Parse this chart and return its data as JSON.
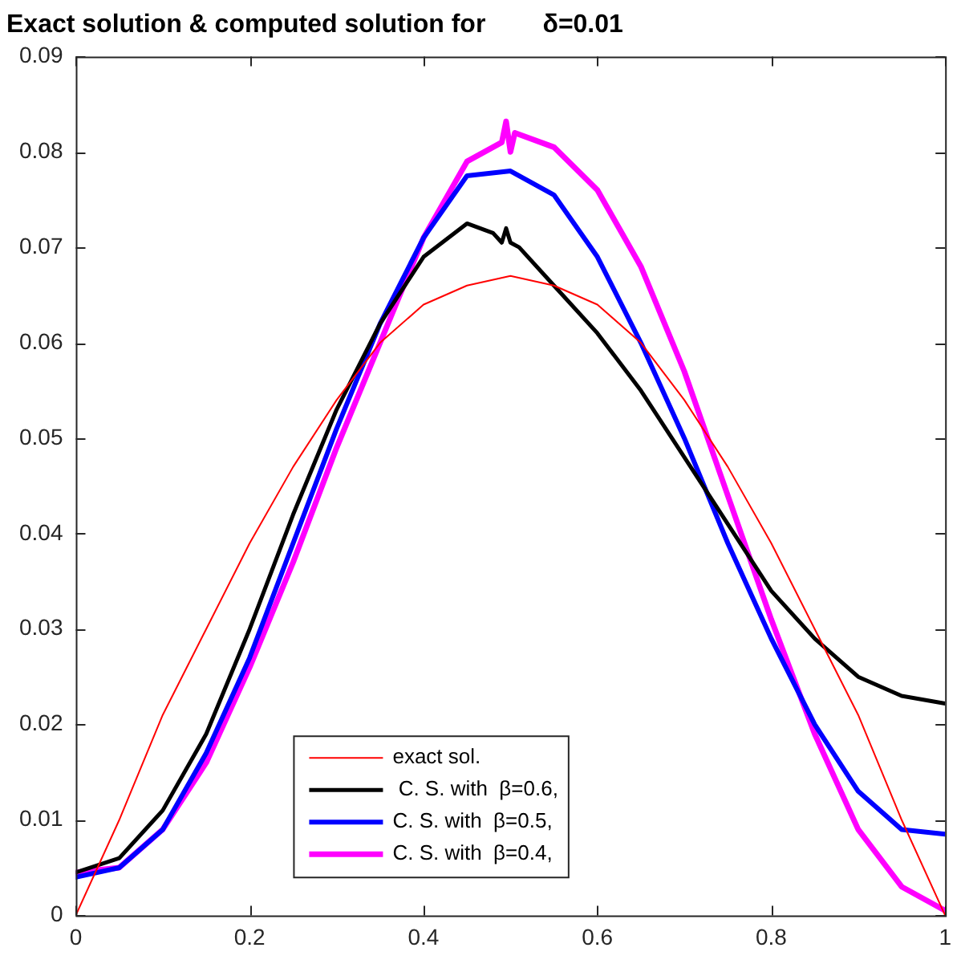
{
  "chart_data": {
    "type": "line",
    "title": "Exact solution & computed solution for        δ=0.01",
    "xlim": [
      0,
      1
    ],
    "ylim": [
      0,
      0.09
    ],
    "xticks": [
      0,
      0.2,
      0.4,
      0.6,
      0.8,
      1
    ],
    "yticks": [
      0,
      0.01,
      0.02,
      0.03,
      0.04,
      0.05,
      0.06,
      0.07,
      0.08,
      0.09
    ],
    "grid": false,
    "legend": "bottom",
    "marker": "none",
    "line_style": "solid",
    "x": [
      0,
      0.05,
      0.1,
      0.15,
      0.2,
      0.25,
      0.3,
      0.35,
      0.4,
      0.45,
      0.5,
      0.55,
      0.6,
      0.65,
      0.7,
      0.75,
      0.8,
      0.85,
      0.9,
      0.95,
      1
    ],
    "series": [
      {
        "name": "exact sol.",
        "color": "#ff0000",
        "values": [
          0,
          0.01,
          0.021,
          0.03,
          0.039,
          0.047,
          0.054,
          0.06,
          0.064,
          0.066,
          0.067,
          0.066,
          0.064,
          0.06,
          0.054,
          0.047,
          0.039,
          0.03,
          0.021,
          0.01,
          0
        ]
      },
      {
        "name": " C. S. with  β=0.6,",
        "color": "#000000",
        "x": [
          0,
          0.05,
          0.1,
          0.15,
          0.2,
          0.25,
          0.3,
          0.35,
          0.4,
          0.45,
          0.48,
          0.49,
          0.495,
          0.5,
          0.51,
          0.55,
          0.6,
          0.65,
          0.7,
          0.75,
          0.8,
          0.85,
          0.9,
          0.95,
          1
        ],
        "values": [
          0.0045,
          0.006,
          0.011,
          0.019,
          0.03,
          0.042,
          0.053,
          0.062,
          0.069,
          0.0725,
          0.0715,
          0.0705,
          0.072,
          0.0705,
          0.07,
          0.066,
          0.061,
          0.055,
          0.048,
          0.041,
          0.034,
          0.029,
          0.025,
          0.023,
          0.0222
        ]
      },
      {
        "name": "C. S. with  β=0.5,",
        "color": "#0000ff",
        "values": [
          0.004,
          0.005,
          0.009,
          0.017,
          0.027,
          0.039,
          0.051,
          0.062,
          0.071,
          0.0775,
          0.078,
          0.0755,
          0.069,
          0.06,
          0.05,
          0.039,
          0.029,
          0.02,
          0.013,
          0.009,
          0.0085
        ]
      },
      {
        "name": "C. S. with  β=0.4,",
        "color": "#ff00ff",
        "x": [
          0,
          0.05,
          0.1,
          0.15,
          0.2,
          0.25,
          0.3,
          0.35,
          0.4,
          0.45,
          0.49,
          0.495,
          0.5,
          0.505,
          0.55,
          0.6,
          0.65,
          0.7,
          0.75,
          0.8,
          0.85,
          0.9,
          0.95,
          1
        ],
        "values": [
          0.0045,
          0.005,
          0.009,
          0.016,
          0.026,
          0.037,
          0.049,
          0.06,
          0.071,
          0.079,
          0.081,
          0.0832,
          0.08,
          0.082,
          0.0805,
          0.076,
          0.068,
          0.057,
          0.044,
          0.031,
          0.019,
          0.009,
          0.003,
          0.0005
        ]
      }
    ]
  }
}
